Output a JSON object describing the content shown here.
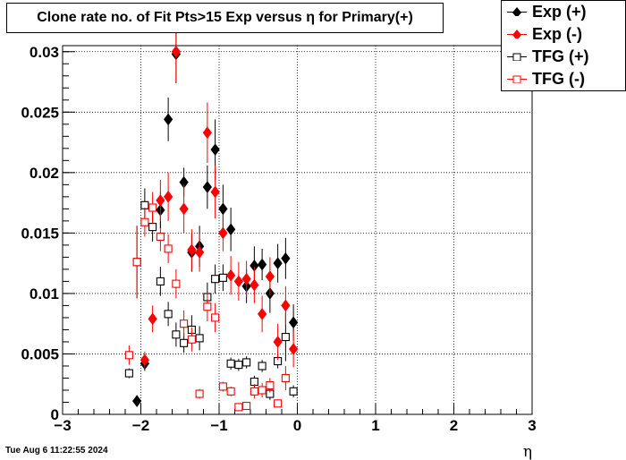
{
  "chart_data": {
    "type": "scatter",
    "title": "Clone rate no. of Fit Pts>15 Exp versus η for Primary(+)",
    "xlabel": "η",
    "ylabel": "",
    "xlim": [
      -3,
      3
    ],
    "ylim": [
      0,
      0.0305
    ],
    "xticks": [
      "−3",
      "−2",
      "−1",
      "0",
      "1",
      "2",
      "3"
    ],
    "yticks": [
      "0",
      "0.005",
      "0.01",
      "0.015",
      "0.02",
      "0.025",
      "0.03"
    ],
    "grid": true,
    "legend_position": "top-right",
    "series": [
      {
        "name": "Exp (+)",
        "marker": "filled-diamond",
        "color": "#000000",
        "points": [
          {
            "x": -2.05,
            "y": 0.0011,
            "err": 0.0001
          },
          {
            "x": -1.95,
            "y": 0.0042,
            "err": 0.0006
          },
          {
            "x": -1.75,
            "y": 0.0169,
            "err": 0.0015
          },
          {
            "x": -1.65,
            "y": 0.0244,
            "err": 0.0018
          },
          {
            "x": -1.55,
            "y": 0.0298,
            "err": 0.0024
          },
          {
            "x": -1.45,
            "y": 0.0192,
            "err": 0.0012
          },
          {
            "x": -1.35,
            "y": 0.0134,
            "err": 0.0016
          },
          {
            "x": -1.25,
            "y": 0.0139,
            "err": 0.0017
          },
          {
            "x": -1.15,
            "y": 0.0188,
            "err": 0.0018
          },
          {
            "x": -1.05,
            "y": 0.0219,
            "err": 0.0025
          },
          {
            "x": -0.95,
            "y": 0.017,
            "err": 0.002
          },
          {
            "x": -0.85,
            "y": 0.0153,
            "err": 0.0018
          },
          {
            "x": -0.65,
            "y": 0.0106,
            "err": 0.0014
          },
          {
            "x": -0.55,
            "y": 0.0123,
            "err": 0.0016
          },
          {
            "x": -0.45,
            "y": 0.0124,
            "err": 0.0013
          },
          {
            "x": -0.35,
            "y": 0.01,
            "err": 0.0016
          },
          {
            "x": -0.25,
            "y": 0.0125,
            "err": 0.0016
          },
          {
            "x": -0.15,
            "y": 0.0129,
            "err": 0.0017
          },
          {
            "x": -0.05,
            "y": 0.0076,
            "err": 0.0015
          }
        ]
      },
      {
        "name": "Exp (-)",
        "marker": "filled-diamond",
        "color": "#ff0000",
        "points": [
          {
            "x": -1.95,
            "y": 0.0045,
            "err": 0.0007
          },
          {
            "x": -1.85,
            "y": 0.0079,
            "err": 0.0011
          },
          {
            "x": -1.75,
            "y": 0.0177,
            "err": 0.0017
          },
          {
            "x": -1.65,
            "y": 0.018,
            "err": 0.002
          },
          {
            "x": -1.55,
            "y": 0.03,
            "err": 0.0025
          },
          {
            "x": -1.45,
            "y": 0.017,
            "err": 0.002
          },
          {
            "x": -1.35,
            "y": 0.0136,
            "err": 0.0017
          },
          {
            "x": -1.25,
            "y": 0.0134,
            "err": 0.0016
          },
          {
            "x": -1.15,
            "y": 0.0233,
            "err": 0.0025
          },
          {
            "x": -1.05,
            "y": 0.0184,
            "err": 0.0022
          },
          {
            "x": -0.95,
            "y": 0.015,
            "err": 0.0015
          },
          {
            "x": -0.85,
            "y": 0.0115,
            "err": 0.0016
          },
          {
            "x": -0.75,
            "y": 0.011,
            "err": 0.0016
          },
          {
            "x": -0.65,
            "y": 0.0112,
            "err": 0.0015
          },
          {
            "x": -0.55,
            "y": 0.0107,
            "err": 0.0015
          },
          {
            "x": -0.45,
            "y": 0.0083,
            "err": 0.0015
          },
          {
            "x": -0.35,
            "y": 0.0114,
            "err": 0.0016
          },
          {
            "x": -0.25,
            "y": 0.006,
            "err": 0.0015
          },
          {
            "x": -0.15,
            "y": 0.009,
            "err": 0.0016
          },
          {
            "x": -0.05,
            "y": 0.0054,
            "err": 0.0015
          }
        ]
      },
      {
        "name": "TFG (+)",
        "marker": "open-square",
        "color": "#000000",
        "points": [
          {
            "x": -2.15,
            "y": 0.0034,
            "err": 0.0004
          },
          {
            "x": -2.05,
            "y": 0.0126,
            "err": 0.003
          },
          {
            "x": -1.95,
            "y": 0.0173,
            "err": 0.0014
          },
          {
            "x": -1.85,
            "y": 0.0155,
            "err": 0.0012
          },
          {
            "x": -1.75,
            "y": 0.011,
            "err": 0.0012
          },
          {
            "x": -1.65,
            "y": 0.0083,
            "err": 0.001
          },
          {
            "x": -1.55,
            "y": 0.0066,
            "err": 0.001
          },
          {
            "x": -1.45,
            "y": 0.0059,
            "err": 0.0008
          },
          {
            "x": -1.35,
            "y": 0.007,
            "err": 0.0012
          },
          {
            "x": -1.25,
            "y": 0.0063,
            "err": 0.001
          },
          {
            "x": -1.15,
            "y": 0.0097,
            "err": 0.0012
          },
          {
            "x": -1.05,
            "y": 0.0112,
            "err": 0.0012
          },
          {
            "x": -0.95,
            "y": 0.0113,
            "err": 0.0011
          },
          {
            "x": -0.85,
            "y": 0.0042,
            "err": 0.0005
          },
          {
            "x": -0.75,
            "y": 0.0041,
            "err": 0.0005
          },
          {
            "x": -0.65,
            "y": 0.0043,
            "err": 0.0005
          },
          {
            "x": -0.55,
            "y": 0.0027,
            "err": 0.0005
          },
          {
            "x": -0.45,
            "y": 0.004,
            "err": 0.0005
          },
          {
            "x": -0.35,
            "y": 0.0017,
            "err": 0.0005
          },
          {
            "x": -0.25,
            "y": 0.0044,
            "err": 0.0006
          },
          {
            "x": -0.15,
            "y": 0.0064,
            "err": 0.002
          },
          {
            "x": -0.05,
            "y": 0.0019,
            "err": 0.0005
          }
        ]
      },
      {
        "name": "TFG (-)",
        "marker": "open-square",
        "color": "#ff0000",
        "points": [
          {
            "x": -2.15,
            "y": 0.0049,
            "err": 0.0008
          },
          {
            "x": -2.05,
            "y": 0.0126,
            "err": 0.003
          },
          {
            "x": -1.95,
            "y": 0.0159,
            "err": 0.0012
          },
          {
            "x": -1.85,
            "y": 0.0171,
            "err": 0.0013
          },
          {
            "x": -1.75,
            "y": 0.0147,
            "err": 0.0012
          },
          {
            "x": -1.65,
            "y": 0.0137,
            "err": 0.0012
          },
          {
            "x": -1.55,
            "y": 0.0108,
            "err": 0.0012
          },
          {
            "x": -1.45,
            "y": 0.0075,
            "err": 0.0011
          },
          {
            "x": -1.35,
            "y": 0.0062,
            "err": 0.001
          },
          {
            "x": -1.25,
            "y": 0.0017,
            "err": 0.0004
          },
          {
            "x": -1.15,
            "y": 0.0089,
            "err": 0.0012
          },
          {
            "x": -1.05,
            "y": 0.008,
            "err": 0.0012
          },
          {
            "x": -0.95,
            "y": 0.0023,
            "err": 0.0004
          },
          {
            "x": -0.85,
            "y": 0.0019,
            "err": 0.0004
          },
          {
            "x": -0.75,
            "y": 0.0006,
            "err": 0.0003
          },
          {
            "x": -0.65,
            "y": 0.0007,
            "err": 0.0003
          },
          {
            "x": -0.55,
            "y": 0.0019,
            "err": 0.0006
          },
          {
            "x": -0.45,
            "y": 0.002,
            "err": 0.0006
          },
          {
            "x": -0.35,
            "y": 0.0024,
            "err": 0.0006
          },
          {
            "x": -0.25,
            "y": 0.0009,
            "err": 0.0003
          },
          {
            "x": -0.15,
            "y": 0.003,
            "err": 0.001
          }
        ]
      }
    ]
  },
  "footer": {
    "timestamp": "Tue Aug  6 11:22:55 2024"
  }
}
